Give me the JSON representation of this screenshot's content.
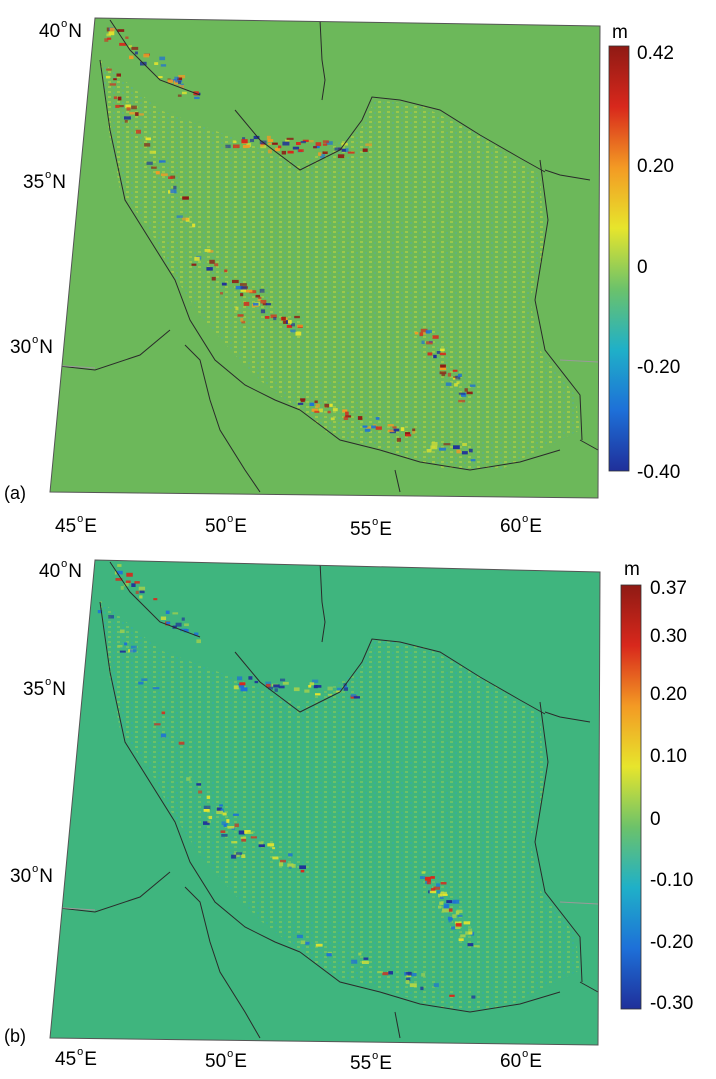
{
  "panels": [
    {
      "tag": "(a)",
      "colorbar": {
        "unit": "m",
        "min": -0.4,
        "max": 0.42,
        "ticks": [
          "0.42",
          "0.20",
          "0",
          "-0.20",
          "-0.40"
        ]
      },
      "lat_labels": [
        {
          "deg": "40",
          "hemi": "N"
        },
        {
          "deg": "35",
          "hemi": "N"
        },
        {
          "deg": "30",
          "hemi": "N"
        }
      ],
      "lon_labels": [
        {
          "deg": "45",
          "hemi": "E"
        },
        {
          "deg": "50",
          "hemi": "E"
        },
        {
          "deg": "55",
          "hemi": "E"
        },
        {
          "deg": "60",
          "hemi": "E"
        }
      ]
    },
    {
      "tag": "(b)",
      "colorbar": {
        "unit": "m",
        "min": -0.3,
        "max": 0.37,
        "ticks": [
          "0.37",
          "0.30",
          "0.20",
          "0.10",
          "0",
          "-0.10",
          "-0.20",
          "-0.30"
        ]
      },
      "lat_labels": [
        {
          "deg": "40",
          "hemi": "N"
        },
        {
          "deg": "35",
          "hemi": "N"
        },
        {
          "deg": "30",
          "hemi": "N"
        }
      ],
      "lon_labels": [
        {
          "deg": "45",
          "hemi": "E"
        },
        {
          "deg": "50",
          "hemi": "E"
        },
        {
          "deg": "55",
          "hemi": "E"
        },
        {
          "deg": "60",
          "hemi": "E"
        }
      ]
    }
  ],
  "colors": {
    "background_a": "#6cb85a",
    "background_b": "#3fb57e",
    "border_line": "#2a2a2a",
    "colormap": [
      "#1f2f9a",
      "#1e70d8",
      "#1fb0c8",
      "#6cc26a",
      "#e7e52c",
      "#f39a24",
      "#d8281c",
      "#8f1a14"
    ]
  }
}
